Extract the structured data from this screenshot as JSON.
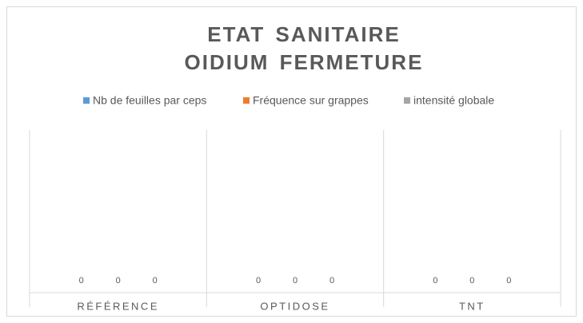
{
  "chart_data": {
    "type": "bar",
    "title": "ETAT SANITAIRE OIDIUM FERMETURE",
    "categories": [
      "RÉFÉRENCE",
      "OPTIDOSE",
      "TNT"
    ],
    "series": [
      {
        "name": "Nb de feuilles par ceps",
        "color": "#5b9bd5",
        "values": [
          0,
          0,
          0
        ]
      },
      {
        "name": "Fréquence sur grappes",
        "color": "#ed7d31",
        "values": [
          0,
          0,
          0
        ]
      },
      {
        "name": "intensité globale",
        "color": "#a5a5a5",
        "values": [
          0,
          0,
          0
        ]
      }
    ],
    "ylim": [
      0,
      1
    ],
    "legend": "top",
    "data_labels": true
  }
}
